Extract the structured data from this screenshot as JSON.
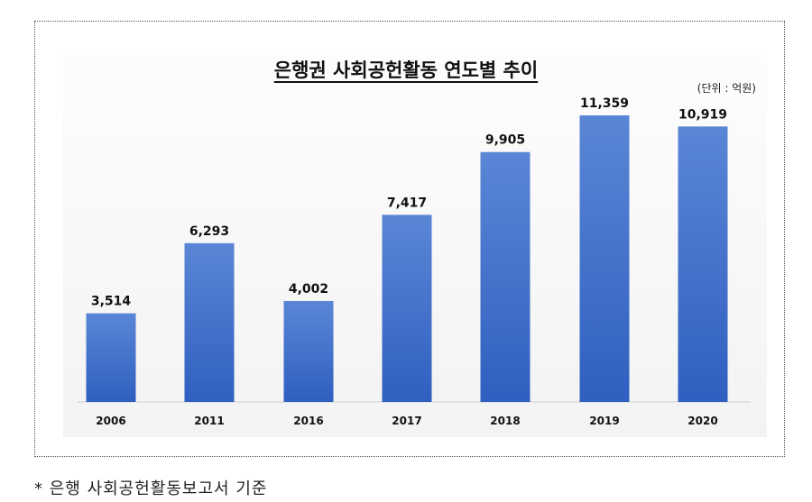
{
  "chart_data": {
    "type": "bar",
    "title": "은행권 사회공헌활동 연도별 추이",
    "unit_note": "(단위 : 억원)",
    "categories": [
      "2006",
      "2011",
      "2016",
      "2017",
      "2018",
      "2019",
      "2020"
    ],
    "values": [
      3514,
      6293,
      4002,
      7417,
      9905,
      11359,
      10919
    ],
    "value_labels": [
      "3,514",
      "6,293",
      "4,002",
      "7,417",
      "9,905",
      "11,359",
      "10,919"
    ],
    "ylim": [
      0,
      11359
    ],
    "grid": false,
    "legend": "none",
    "bar_color": "#4472c4"
  },
  "footnote": "* 은행 사회공헌활동보고서 기준"
}
